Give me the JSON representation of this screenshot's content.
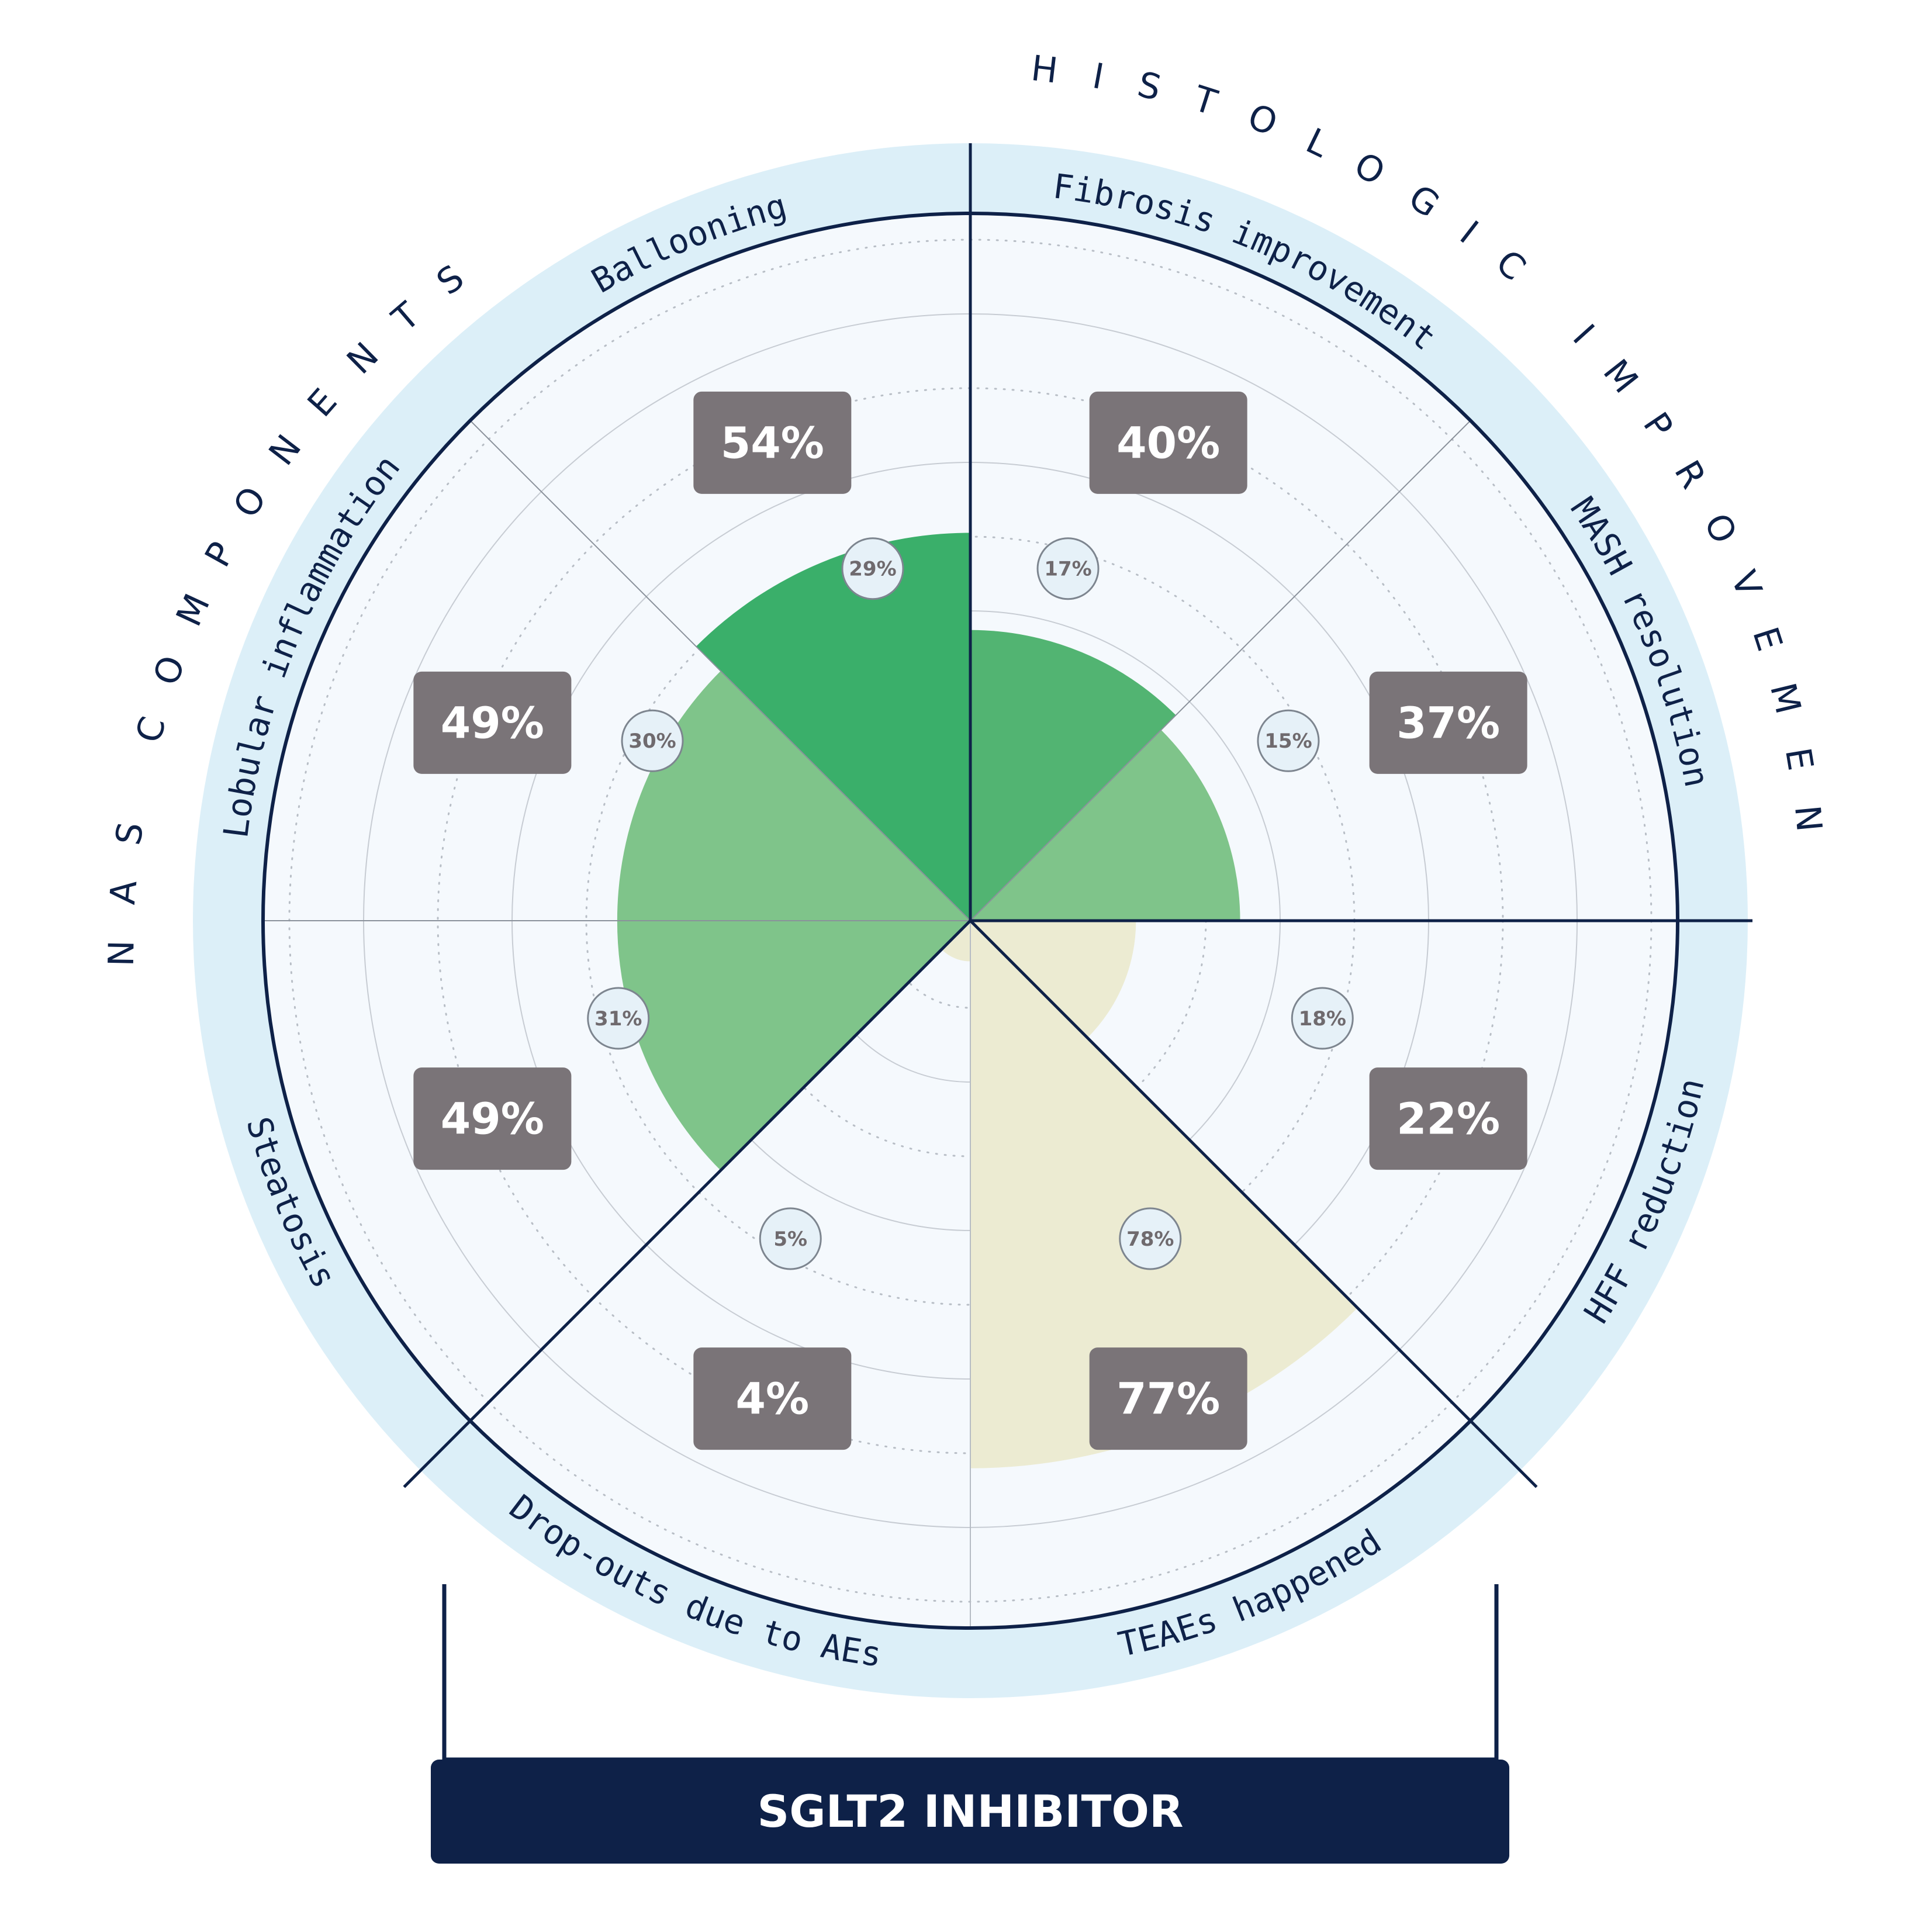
{
  "chart_data": {
    "type": "polar-area",
    "title": "SGLT2 INHIBITOR",
    "group_labels": [
      {
        "id": "nas",
        "text": "NAS COMPONENTS"
      },
      {
        "id": "histo",
        "text": "HISTOLOGIC IMPROVEMENT"
      }
    ],
    "scale_max": 100,
    "grid": true,
    "colors": {
      "nas_fill": "#7fc48a",
      "ballooning_fill": "#3aaf6a",
      "fibrosis_fill": "#52b472",
      "safety_fill": "#ecebd2",
      "value_box": "#7a7478",
      "navy": "#0e2148",
      "ring": "#dceff8",
      "plot_bg": "#f5f9fd"
    },
    "sectors": [
      {
        "label": "Fibrosis improvement",
        "value": "40%",
        "small": "17%",
        "value_num": 40,
        "fill_key": "fibrosis_fill"
      },
      {
        "label": "MASH resolution",
        "value": "37%",
        "small": "15%",
        "value_num": 37,
        "fill_key": "nas_fill"
      },
      {
        "label": "HFF reduction",
        "value": "22%",
        "small": "18%",
        "value_num": 22,
        "fill_key": "safety_fill"
      },
      {
        "label": "TEAEs happened",
        "value": "77%",
        "small": "78%",
        "value_num": 77,
        "fill_key": "safety_fill"
      },
      {
        "label": "Drop-outs due to AEs",
        "value": "4%",
        "small": "5%",
        "value_num": 4,
        "fill_key": "safety_fill"
      },
      {
        "label": "Steatosis",
        "value": "49%",
        "small": "31%",
        "value_num": 49,
        "fill_key": "nas_fill"
      },
      {
        "label": "Lobular inflammation",
        "value": "49%",
        "small": "30%",
        "value_num": 49,
        "fill_key": "nas_fill"
      },
      {
        "label": "Ballooning",
        "value": "54%",
        "small": "29%",
        "value_num": 54,
        "fill_key": "ballooning_fill"
      }
    ]
  }
}
